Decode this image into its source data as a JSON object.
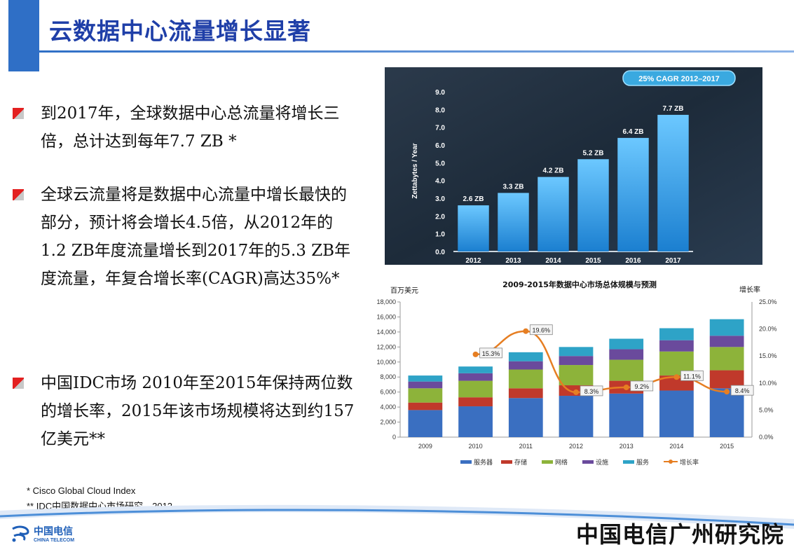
{
  "page": {
    "title": "云数据中心流量增长显著"
  },
  "bullets": [
    "到2017年，全球数据中心总流量将增长三倍，总计达到每年7.7 ZB *",
    "全球云流量将是数据中心流量中增长最快的部分，预计将会增长4.5倍，从2012年的1.2 ZB年度流量增长到2017年的5.3 ZB年度流量，年复合增长率(CAGR)高达35%*",
    "中国IDC市场 2010年至2015年保持两位数的增长率，2015年该市场规模将达到约157亿美元**"
  ],
  "footnotes": [
    "* Cisco Global Cloud Index",
    "** IDC中国数据中心市场研究，2012"
  ],
  "footer": {
    "logo_cn": "中国电信",
    "logo_en": "CHINA TELECOM",
    "brand": "中国电信广州研究院"
  },
  "chart_data": [
    {
      "type": "bar",
      "badge": "25% CAGR 2012–2017",
      "ylabel": "Zettabytes / Year",
      "categories": [
        "2012",
        "2013",
        "2014",
        "2015",
        "2016",
        "2017"
      ],
      "values": [
        2.6,
        3.3,
        4.2,
        5.2,
        6.4,
        7.7
      ],
      "data_labels": [
        "2.6 ZB",
        "3.3 ZB",
        "4.2 ZB",
        "5.2 ZB",
        "6.4 ZB",
        "7.7 ZB"
      ],
      "ylim": [
        0,
        9
      ],
      "yticks": [
        "0.0",
        "1.0",
        "2.0",
        "3.0",
        "4.0",
        "5.0",
        "6.0",
        "7.0",
        "8.0",
        "9.0"
      ],
      "colors": {
        "bar": "#1f8fe0",
        "bar_top": "#5fc0ff",
        "background": "#243445"
      }
    },
    {
      "type": "bar",
      "stacked": true,
      "title": "2009-2015年数据中心市场总体规模与预测",
      "ylabel": "百万美元",
      "y2label": "增长率",
      "categories": [
        "2009",
        "2010",
        "2011",
        "2012",
        "2013",
        "2014",
        "2015"
      ],
      "ylim": [
        0,
        18000
      ],
      "yticks": [
        "0",
        "2,000",
        "4,000",
        "6,000",
        "8,000",
        "10,000",
        "12,000",
        "14,000",
        "16,000",
        "18,000"
      ],
      "y2lim": [
        0,
        25
      ],
      "y2ticks": [
        "0.0%",
        "5.0%",
        "10.0%",
        "15.0%",
        "20.0%",
        "25.0%"
      ],
      "series": [
        {
          "name": "服务器",
          "color": "#3a6fc1",
          "values": [
            3600,
            4100,
            5200,
            5500,
            5800,
            6200,
            6500
          ]
        },
        {
          "name": "存储",
          "color": "#c0392b",
          "values": [
            1000,
            1200,
            1300,
            1400,
            1700,
            2000,
            2400
          ]
        },
        {
          "name": "网络",
          "color": "#8db33a",
          "values": [
            1900,
            2200,
            2500,
            2700,
            2800,
            3200,
            3100
          ]
        },
        {
          "name": "设施",
          "color": "#6a4a9c",
          "values": [
            900,
            1000,
            1100,
            1200,
            1400,
            1500,
            1500
          ]
        },
        {
          "name": "服务",
          "color": "#2ea3c7",
          "values": [
            800,
            900,
            1200,
            1200,
            1400,
            1600,
            2200
          ]
        }
      ],
      "line": {
        "name": "增长率",
        "color": "#e67e22",
        "values": [
          null,
          15.3,
          19.6,
          8.3,
          9.2,
          11.1,
          8.4
        ]
      },
      "line_labels": [
        "",
        "15.3%",
        "19.6%",
        "8.3%",
        "9.2%",
        "11.1%",
        "8.4%"
      ]
    }
  ]
}
